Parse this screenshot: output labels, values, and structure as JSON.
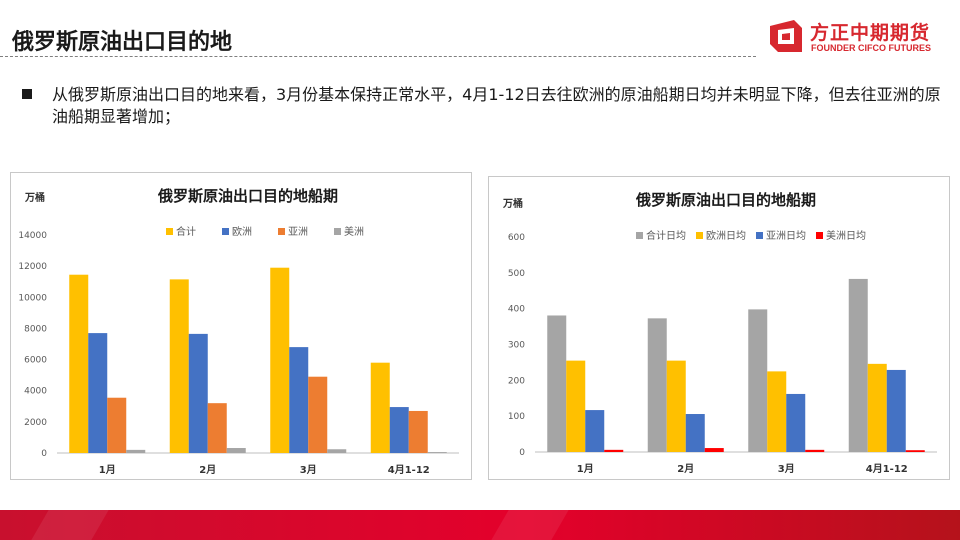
{
  "header": {
    "title": "俄罗斯原油出口目的地",
    "logo_cn": "方正中期期货",
    "logo_en": "FOUNDER CIFCO FUTURES"
  },
  "bullet": {
    "text": "从俄罗斯原油出口目的地来看，3月份基本保持正常水平，4月1-12日去往欧洲的原油船期日均并未明显下降，但去往亚洲的原油船期显著增加；"
  },
  "colors": {
    "brand_red": "#d7282f",
    "gold": "#ffc000",
    "blue": "#4472c4",
    "orange": "#ed7d31",
    "gray": "#a5a5a5",
    "red": "#ff0000"
  },
  "chart_data": [
    {
      "type": "bar",
      "title": "俄罗斯原油出口目的地船期",
      "unit_label": "万桶",
      "categories": [
        "1月",
        "2月",
        "3月",
        "4月1-12"
      ],
      "ylim": [
        0,
        14000
      ],
      "yticks": [
        "0",
        "2000",
        "4000",
        "6000",
        "8000",
        "10000",
        "12000",
        "14000"
      ],
      "grid": false,
      "legend_position": "top",
      "series": [
        {
          "name": "合计",
          "color": "#ffc000",
          "values": [
            11450,
            11150,
            11900,
            5800
          ]
        },
        {
          "name": "欧洲",
          "color": "#4472c4",
          "values": [
            7700,
            7650,
            6800,
            2950
          ]
        },
        {
          "name": "亚洲",
          "color": "#ed7d31",
          "values": [
            3550,
            3200,
            4900,
            2700
          ]
        },
        {
          "name": "美洲",
          "color": "#a5a5a5",
          "values": [
            200,
            320,
            240,
            60
          ]
        }
      ]
    },
    {
      "type": "bar",
      "title": "俄罗斯原油出口目的地船期",
      "unit_label": "万桶",
      "categories": [
        "1月",
        "2月",
        "3月",
        "4月1-12"
      ],
      "ylim": [
        0,
        600
      ],
      "yticks": [
        "0",
        "100",
        "200",
        "300",
        "400",
        "500",
        "600"
      ],
      "grid": false,
      "legend_position": "top",
      "series": [
        {
          "name": "合计日均",
          "color": "#a5a5a5",
          "values": [
            381,
            373,
            398,
            483
          ]
        },
        {
          "name": "欧洲日均",
          "color": "#ffc000",
          "values": [
            255,
            255,
            225,
            246
          ]
        },
        {
          "name": "亚洲日均",
          "color": "#4472c4",
          "values": [
            117,
            106,
            162,
            229
          ]
        },
        {
          "name": "美洲日均",
          "color": "#ff0000",
          "values": [
            6,
            11,
            6,
            5
          ]
        }
      ]
    }
  ]
}
